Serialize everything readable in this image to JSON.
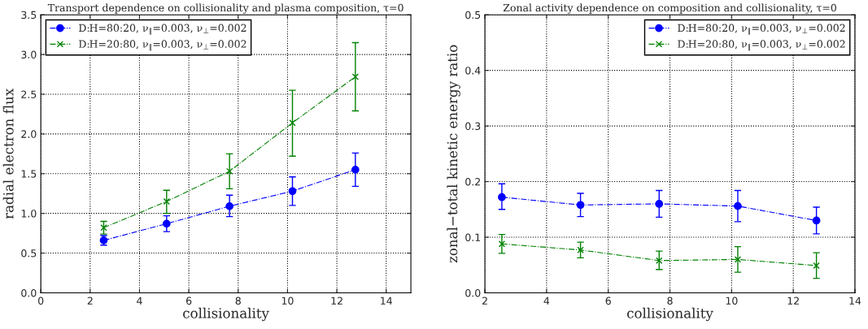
{
  "chart_data": [
    {
      "type": "line",
      "title": "Transport dependence on collisionality and plasma composition, τ=0",
      "xlabel": "collisionality",
      "ylabel": "radial electron flux",
      "xlim": [
        0,
        15
      ],
      "xticks": [
        0,
        2,
        4,
        6,
        8,
        10,
        12,
        14
      ],
      "ylim": [
        0,
        3.5
      ],
      "yticks": [
        {
          "value": 0,
          "label": "0.0"
        },
        0.5,
        {
          "value": 1,
          "label": "1.0"
        },
        1.5,
        {
          "value": 2,
          "label": "2.0"
        },
        2.5,
        {
          "value": 3,
          "label": "3.0"
        },
        3.5
      ],
      "grid": true,
      "legend": "top left",
      "line_style": "dashed",
      "series": [
        {
          "name": "D:H=80:20, ν$_{∥}$=0.003, ν$_{⊥}$=0.002",
          "color": "#0000ff",
          "marker": "circle",
          "x": [
            2.55,
            5.1,
            7.65,
            10.2,
            12.75
          ],
          "values": [
            0.66,
            0.87,
            1.09,
            1.28,
            1.55
          ],
          "errors": [
            [
              0.6,
              0.72
            ],
            [
              0.77,
              0.97
            ],
            [
              0.96,
              1.23
            ],
            [
              1.1,
              1.46
            ],
            [
              1.34,
              1.76
            ]
          ]
        },
        {
          "name": "D:H=20:80, ν$_{∥}$=0.003, ν$_{⊥}$=0.002",
          "color": "#008000",
          "marker": "cross",
          "x": [
            2.55,
            5.1,
            7.65,
            10.2,
            12.75
          ],
          "values": [
            0.82,
            1.15,
            1.53,
            2.14,
            2.72
          ],
          "errors": [
            [
              0.74,
              0.9
            ],
            [
              1.0,
              1.29
            ],
            [
              1.31,
              1.75
            ],
            [
              1.72,
              2.55
            ],
            [
              2.29,
              3.15
            ]
          ]
        }
      ]
    },
    {
      "type": "line",
      "title": "Zonal activity dependence on composition and collisionality, τ=0",
      "xlabel": "collisionality",
      "ylabel": "zonal−total kinetic energy ratio",
      "xlim": [
        2,
        14
      ],
      "xticks": [
        2,
        4,
        6,
        8,
        10,
        12,
        14
      ],
      "ylim": [
        0,
        0.5
      ],
      "yticks": [
        {
          "value": 0,
          "label": "0.0"
        },
        0.1,
        0.2,
        0.3,
        0.4,
        0.5
      ],
      "grid": true,
      "legend": "top right",
      "line_style": "dashed",
      "series": [
        {
          "name": "D:H=80:20, ν$_{∥}$=0.003, ν$_{⊥}$=0.002",
          "color": "#0000ff",
          "marker": "circle",
          "x": [
            2.55,
            5.1,
            7.65,
            10.2,
            12.75
          ],
          "values": [
            0.172,
            0.158,
            0.16,
            0.156,
            0.13
          ],
          "errors": [
            [
              0.15,
              0.196
            ],
            [
              0.137,
              0.179
            ],
            [
              0.136,
              0.184
            ],
            [
              0.128,
              0.184
            ],
            [
              0.106,
              0.154
            ]
          ]
        },
        {
          "name": "D:H=20:80, ν$_{∥}$=0.003, ν$_{⊥}$=0.002",
          "color": "#008000",
          "marker": "cross",
          "x": [
            2.55,
            5.1,
            7.65,
            10.2,
            12.75
          ],
          "values": [
            0.088,
            0.077,
            0.058,
            0.06,
            0.049
          ],
          "errors": [
            [
              0.071,
              0.105
            ],
            [
              0.063,
              0.091
            ],
            [
              0.042,
              0.075
            ],
            [
              0.037,
              0.083
            ],
            [
              0.026,
              0.072
            ]
          ]
        }
      ]
    }
  ]
}
